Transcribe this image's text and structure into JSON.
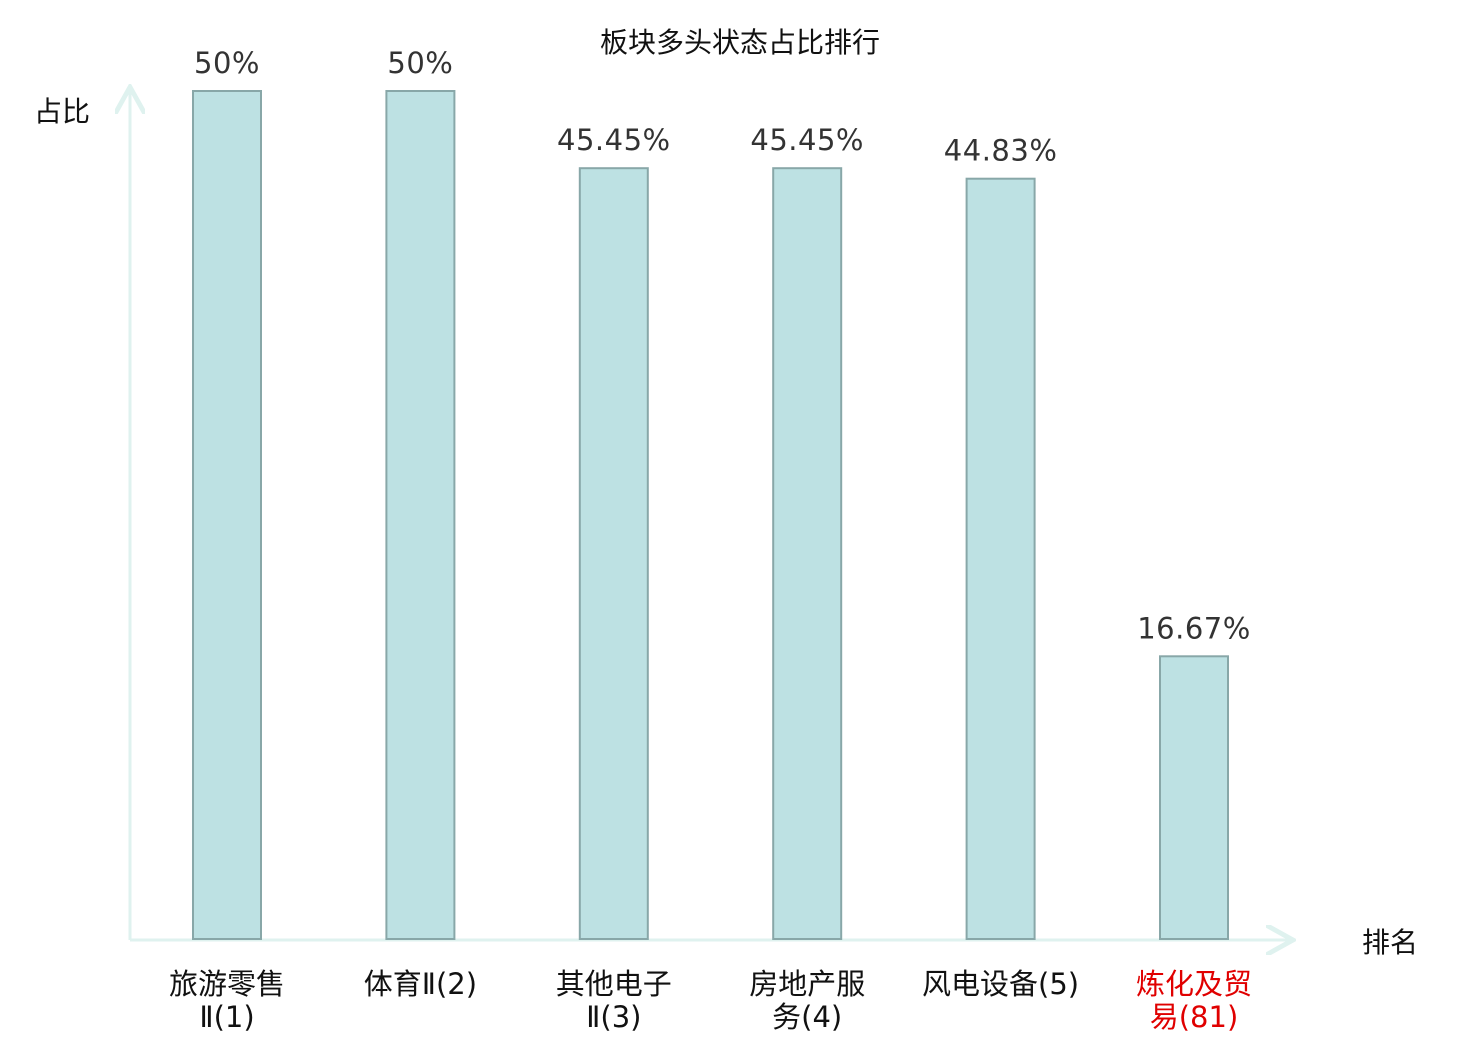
{
  "chart_data": {
    "type": "bar",
    "title": "板块多头状态占比排行",
    "ylabel": "占比",
    "xlabel": "排名",
    "categories": [
      [
        "旅游零售",
        "Ⅱ(1)"
      ],
      [
        "体育Ⅱ(2)"
      ],
      [
        "其他电子",
        "Ⅱ(3)"
      ],
      [
        "房地产服",
        "务(4)"
      ],
      [
        "风电设备(5)"
      ],
      [
        "炼化及贸",
        "易(81)"
      ]
    ],
    "values": [
      50,
      50,
      45.45,
      45.45,
      44.83,
      16.67
    ],
    "value_labels": [
      "50%",
      "50%",
      "45.45%",
      "45.45%",
      "44.83%",
      "16.67%"
    ],
    "highlight_index": 5,
    "ylim": [
      0,
      50
    ],
    "grid": false,
    "legend": "none"
  },
  "colors": {
    "bar_fill": "#bde1e3",
    "bar_stroke": "#88a7a8",
    "axis": "#dff2ef",
    "highlight_label": "#e00000",
    "normal_label": "#111111"
  }
}
